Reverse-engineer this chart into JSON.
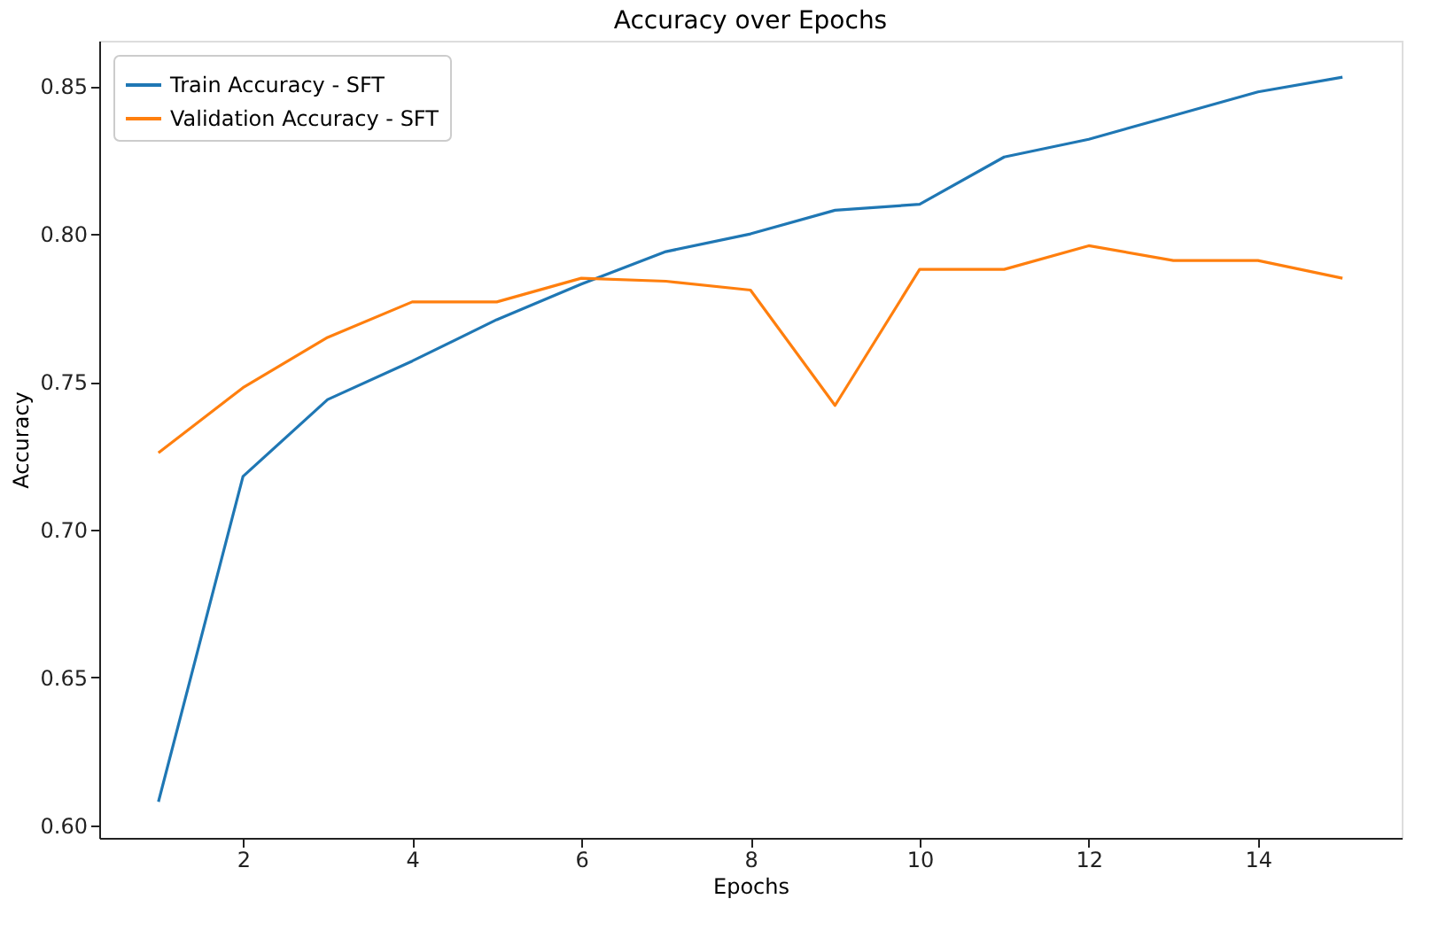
{
  "chart_data": {
    "type": "line",
    "title": "Accuracy over Epochs",
    "xlabel": "Epochs",
    "ylabel": "Accuracy",
    "x": [
      1,
      2,
      3,
      4,
      5,
      6,
      7,
      8,
      9,
      10,
      11,
      12,
      13,
      14,
      15
    ],
    "series": [
      {
        "name": "Train Accuracy - SFT",
        "color": "#1f77b4",
        "values": [
          0.608,
          0.718,
          0.744,
          0.757,
          0.771,
          0.783,
          0.794,
          0.8,
          0.808,
          0.81,
          0.826,
          0.832,
          0.84,
          0.848,
          0.853
        ]
      },
      {
        "name": "Validation Accuracy - SFT",
        "color": "#ff7f0e",
        "values": [
          0.726,
          0.748,
          0.765,
          0.777,
          0.777,
          0.785,
          0.784,
          0.781,
          0.742,
          0.788,
          0.788,
          0.796,
          0.791,
          0.791,
          0.785
        ]
      }
    ],
    "xlim": [
      0.3,
      15.7
    ],
    "ylim": [
      0.5958,
      0.8653
    ],
    "xticks": [
      2,
      4,
      6,
      8,
      10,
      12,
      14
    ],
    "yticks": [
      {
        "value": 0.6,
        "label": "0.60"
      },
      0.65,
      {
        "value": 0.7,
        "label": "0.70"
      },
      0.75,
      {
        "value": 0.8,
        "label": "0.80"
      },
      0.85
    ],
    "grid": false,
    "legend": "top left",
    "marker": "none",
    "line_style": "solid"
  }
}
